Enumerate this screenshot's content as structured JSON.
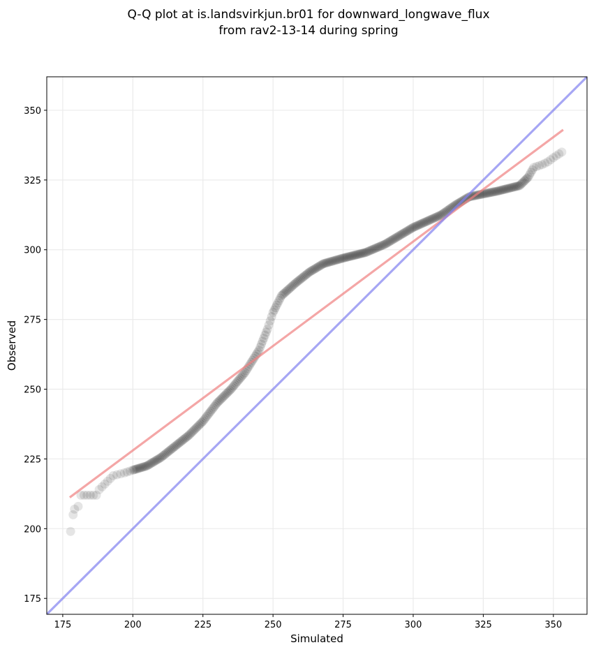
{
  "chart_data": {
    "type": "scatter",
    "title_lines": [
      "Q-Q plot at is.landsvirkjun.br01 for downward_longwave_flux",
      "from rav2-13-14 during spring"
    ],
    "xlabel": "Simulated",
    "ylabel": "Observed",
    "xlim": [
      169.3,
      362
    ],
    "ylim": [
      169.3,
      362
    ],
    "grid": true,
    "x_ticks": [
      175,
      200,
      225,
      250,
      275,
      300,
      325,
      350
    ],
    "y_ticks": [
      175,
      200,
      225,
      250,
      275,
      300,
      325,
      350
    ],
    "x_tick_labels": [
      "175",
      "200",
      "225",
      "250",
      "275",
      "300",
      "325",
      "350"
    ],
    "y_tick_labels": [
      "175",
      "200",
      "225",
      "250",
      "275",
      "300",
      "325",
      "350"
    ],
    "quantile_anchors": [
      [
        177.8,
        199
      ],
      [
        178.7,
        205
      ],
      [
        179.2,
        207
      ],
      [
        180.5,
        208
      ],
      [
        181.5,
        212
      ],
      [
        187,
        212
      ],
      [
        188,
        214
      ],
      [
        190,
        216
      ],
      [
        193,
        219
      ],
      [
        197,
        220
      ],
      [
        200,
        221
      ],
      [
        205,
        222.5
      ],
      [
        210,
        225.5
      ],
      [
        215,
        229.5
      ],
      [
        220,
        233.5
      ],
      [
        225,
        238.5
      ],
      [
        230,
        245
      ],
      [
        235,
        250
      ],
      [
        240,
        256
      ],
      [
        245,
        264
      ],
      [
        248,
        271.5
      ],
      [
        250,
        277.5
      ],
      [
        253,
        283.5
      ],
      [
        258,
        288
      ],
      [
        263,
        292
      ],
      [
        268,
        295
      ],
      [
        275,
        297
      ],
      [
        283,
        299
      ],
      [
        290,
        302
      ],
      [
        300,
        308
      ],
      [
        310,
        312.5
      ],
      [
        315,
        316
      ],
      [
        320,
        319
      ],
      [
        330,
        321
      ],
      [
        338,
        323
      ],
      [
        341,
        326
      ],
      [
        343,
        329.5
      ],
      [
        346,
        330.5
      ],
      [
        348,
        331.5
      ],
      [
        350,
        333
      ],
      [
        353,
        335
      ]
    ],
    "series": [
      {
        "name": "quantiles",
        "color": "#000000",
        "opacity": 0.1
      },
      {
        "name": "fit line",
        "color": "#f08080",
        "x": [
          177.5,
          353.5
        ],
        "y": [
          211.2,
          343
        ]
      },
      {
        "name": "1:1 line",
        "color": "#8080f0",
        "x": [
          169.3,
          362
        ],
        "y": [
          169.3,
          362
        ]
      }
    ]
  }
}
